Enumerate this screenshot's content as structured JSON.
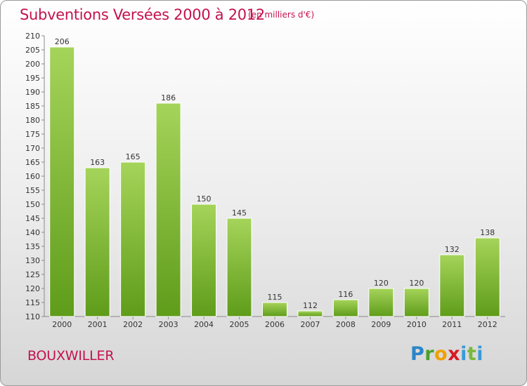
{
  "header": {
    "title": "Subventions Versées 2000 à 2012",
    "unit_note": "(en milliers d'€)"
  },
  "footer": {
    "commune": "BOUXWILLER",
    "logo_letters": [
      "P",
      "r",
      "o",
      "x",
      "i",
      "t",
      "i"
    ]
  },
  "colors": {
    "accent": "#c4124e",
    "bar_light": "#a5d45a",
    "bar_dark": "#5f9c1a"
  },
  "chart_data": {
    "type": "bar",
    "title": "Subventions Versées 2000 à 2012",
    "subtitle": "(en milliers d'€)",
    "categories": [
      "2000",
      "2001",
      "2002",
      "2003",
      "2004",
      "2005",
      "2006",
      "2007",
      "2008",
      "2009",
      "2010",
      "2011",
      "2012"
    ],
    "values": [
      206,
      163,
      165,
      186,
      150,
      145,
      115,
      112,
      116,
      120,
      120,
      132,
      138
    ],
    "ylim": [
      110,
      210
    ],
    "yticks": [
      110,
      115,
      120,
      125,
      130,
      135,
      140,
      145,
      150,
      155,
      160,
      165,
      170,
      175,
      180,
      185,
      190,
      195,
      200,
      205,
      210
    ],
    "grid": false,
    "legend": "none"
  }
}
